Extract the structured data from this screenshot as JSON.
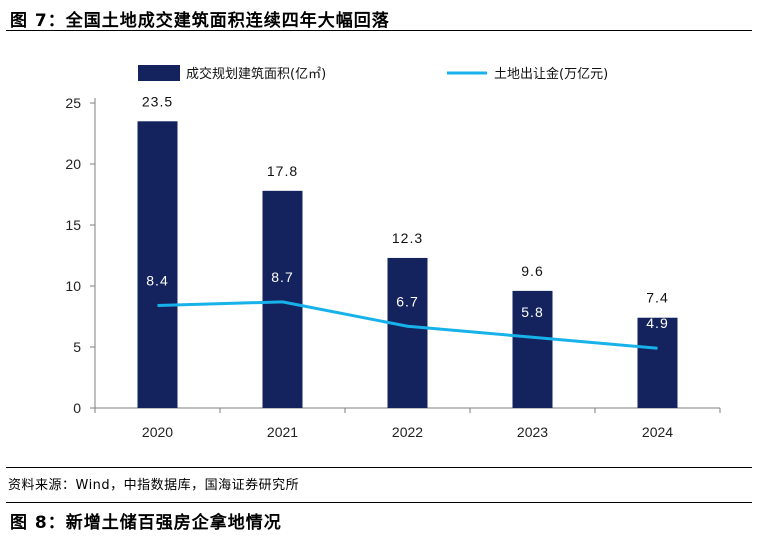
{
  "header": {
    "title": "图 7：全国土地成交建筑面积连续四年大幅回落"
  },
  "footer": {
    "source": "资料来源：Wind，中指数据库，国海证券研究所",
    "next_title": "图 8：新增土储百强房企拿地情况"
  },
  "colors": {
    "bar": "#14235e",
    "line": "#18b2ea",
    "axis": "#7f7f7f"
  },
  "chart_data": {
    "type": "bar",
    "title": "全国土地成交建筑面积连续四年大幅回落",
    "categories": [
      "2020",
      "2021",
      "2022",
      "2023",
      "2024"
    ],
    "ylim": [
      0,
      25
    ],
    "yticks": [
      "0",
      "5",
      "10",
      "15",
      "20",
      "25"
    ],
    "legend_position": "top",
    "series": [
      {
        "name": "成交规划建筑面积(亿㎡)",
        "kind": "bar",
        "values": [
          23.5,
          17.8,
          12.3,
          9.6,
          7.4
        ],
        "labels": [
          "23.5",
          "17.8",
          "12.3",
          "9.6",
          "7.4"
        ]
      },
      {
        "name": "土地出让金(万亿元)",
        "kind": "line",
        "values": [
          8.4,
          8.7,
          6.7,
          5.8,
          4.9
        ],
        "labels": [
          "8.4",
          "8.7",
          "6.7",
          "5.8",
          "4.9"
        ]
      }
    ]
  }
}
